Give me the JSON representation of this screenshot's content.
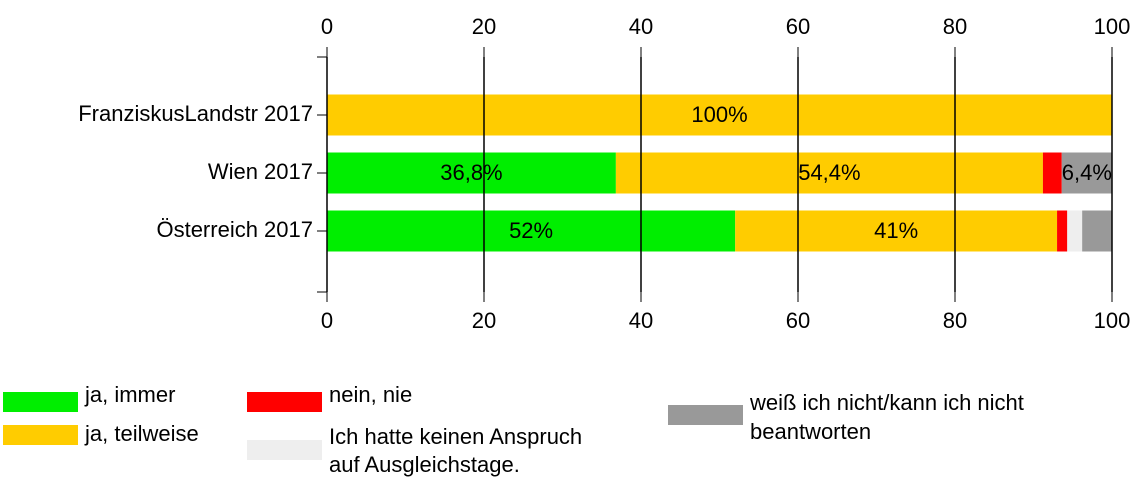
{
  "chart_data": {
    "type": "stacked_barh",
    "categories": [
      "FranziskusLandstr 2017",
      "Wien 2017",
      "Österreich 2017"
    ],
    "series": [
      {
        "name": "ja, immer",
        "color": "#00ee00",
        "values": [
          0,
          36.8,
          52
        ],
        "value_labels": [
          null,
          "36,8%",
          "52%"
        ]
      },
      {
        "name": "ja, teilweise",
        "color": "#ffcc00",
        "values": [
          100,
          54.4,
          41
        ],
        "value_labels": [
          "100%",
          "54,4%",
          "41%"
        ]
      },
      {
        "name": "nein, nie",
        "color": "#ff0000",
        "values": [
          0,
          2.4,
          1.3
        ],
        "value_labels": [
          null,
          null,
          null
        ]
      },
      {
        "name": "Ich hatte keinen Anspruch auf Ausgleichstage.",
        "color": "#eeeeee",
        "values": [
          0,
          0,
          1.9
        ],
        "value_labels": [
          null,
          null,
          null
        ]
      },
      {
        "name": "weiß ich nicht/kann ich nicht beantworten",
        "color": "#999999",
        "values": [
          0,
          6.4,
          3.8
        ],
        "value_labels": [
          null,
          "6,4%",
          null
        ]
      }
    ],
    "xlim": [
      0,
      100
    ],
    "xticks": [
      0,
      20,
      40,
      60,
      80,
      100
    ],
    "grid": true
  }
}
